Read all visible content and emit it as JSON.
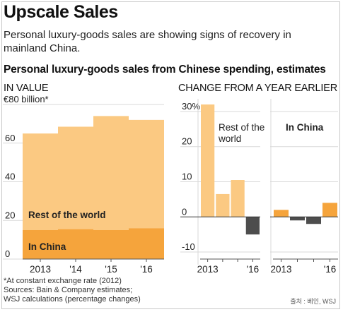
{
  "headline": "Upscale Sales",
  "dek": "Personal luxury-goods sales are showing signs of recovery in mainland China.",
  "chart_title": "Personal luxury-goods sales from Chinese spending, estimates",
  "footnotes": {
    "line1": "*At constant exchange rate (2012)",
    "line2": "Sources: Bain & Company estimates;",
    "line3": "WSJ calculations (percentage changes)"
  },
  "credit": "출처 : 베인, WSJ",
  "colors": {
    "rest": "#fbc982",
    "china": "#f5a43c",
    "negative": "#4d4d4d",
    "grid": "#d9d9d9"
  },
  "chart_data": [
    {
      "type": "area",
      "title": "IN VALUE",
      "unit_label": "€80 billion*",
      "x": [
        "2013",
        "'14",
        "'15",
        "'16"
      ],
      "ylim": [
        0,
        80
      ],
      "yticks": [
        0,
        20,
        40,
        60
      ],
      "series": [
        {
          "name": "In China",
          "values": [
            15,
            15.5,
            15,
            16
          ]
        },
        {
          "name": "Rest of the world",
          "values": [
            50,
            53,
            59,
            56
          ]
        }
      ],
      "grid": true
    },
    {
      "type": "bar",
      "title": "CHANGE FROM A YEAR EARLIER",
      "unit": "%",
      "ylim": [
        -12,
        32
      ],
      "yticks": [
        -10,
        0,
        10,
        20,
        30
      ],
      "panels": [
        {
          "label": "Rest of the world",
          "x": [
            "2013",
            "",
            "",
            "'16"
          ],
          "values": [
            32,
            6.5,
            10.5,
            -5
          ]
        },
        {
          "label": "In China",
          "x": [
            "2013",
            "",
            "",
            "'16"
          ],
          "values": [
            2,
            -1,
            -2,
            4
          ]
        }
      ]
    }
  ]
}
